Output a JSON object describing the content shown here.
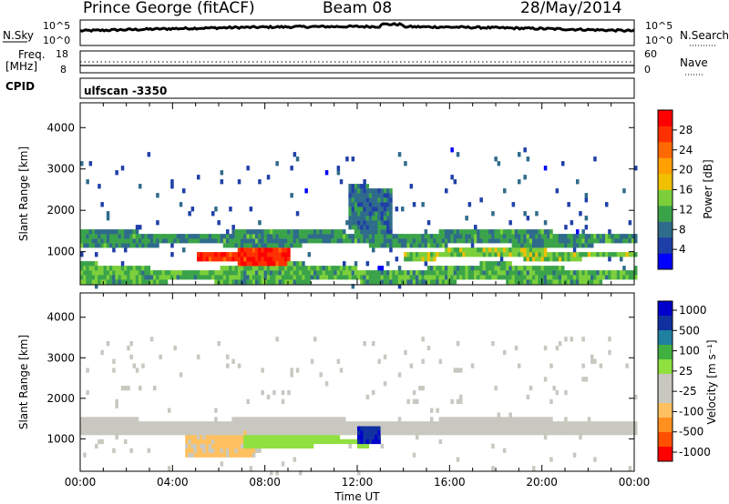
{
  "header": {
    "station": "Prince George (fitACF)",
    "beam": "Beam 08",
    "date": "28/May/2014"
  },
  "strip_labels": {
    "nsky": "N.Sky",
    "nsearch": "N.Search",
    "freq": "Freq.",
    "freq_unit": "[MHz]",
    "nave": "Nave",
    "cpid": "CPID",
    "cpid_value": "ulfscan -3350",
    "nsky_ticks": [
      "10^5",
      "10^0"
    ],
    "nsearch_ticks": [
      "10^5",
      "10^0"
    ],
    "freq_ticks": [
      "18",
      "8"
    ],
    "nave_ticks": [
      "60",
      "0"
    ]
  },
  "colors": {
    "power_scale": [
      "#0000ff",
      "#1f3fa8",
      "#2f6b8a",
      "#3aa34a",
      "#7ccf3a",
      "#f0c000",
      "#ffa000",
      "#ff6a00",
      "#ff3000",
      "#ff0000"
    ],
    "velocity_scale": [
      "#ff0000",
      "#ff5000",
      "#ff9020",
      "#ffc060",
      "#c8c8c0",
      "#c8c8c0",
      "#90e040",
      "#40b040",
      "#2080a0",
      "#1030a0",
      "#0000cc"
    ],
    "ground_scatter": "#c8c8c0"
  },
  "chart_data": [
    {
      "type": "heatmap",
      "name": "power",
      "title": "",
      "xlabel": "",
      "ylabel": "Slant Range [km]",
      "xlim": [
        0,
        24
      ],
      "ylim": [
        200,
        4600
      ],
      "x_ticks": [
        "00:00",
        "04:00",
        "08:00",
        "12:00",
        "16:00",
        "20:00",
        "00:00"
      ],
      "y_ticks": [
        1000,
        2000,
        3000,
        4000
      ],
      "colorbar": {
        "label": "Power [dB]",
        "ticks": [
          4,
          8,
          12,
          16,
          20,
          24,
          28
        ],
        "range": [
          0,
          32
        ]
      },
      "features": [
        {
          "band": "main echo band",
          "t": [
            0,
            24
          ],
          "range_km": [
            1200,
            1550
          ],
          "level_db": 10
        },
        {
          "band": "strong echo patch",
          "t": [
            5,
            9
          ],
          "range_km": [
            800,
            1100
          ],
          "level_db": 28
        },
        {
          "band": "near-range scatter",
          "t": [
            0,
            24
          ],
          "range_km": [
            300,
            700
          ],
          "level_db": 12
        },
        {
          "band": "lower layer",
          "t": [
            14,
            24
          ],
          "range_km": [
            900,
            1100
          ],
          "level_db": 14
        },
        {
          "band": "uplift near 12:30",
          "t": [
            11.5,
            13.5
          ],
          "range_km": [
            1500,
            2700
          ],
          "level_db": 8
        }
      ]
    },
    {
      "type": "heatmap",
      "name": "velocity",
      "title": "",
      "xlabel": "Time UT",
      "ylabel": "Slant Range [km]",
      "xlim": [
        0,
        24
      ],
      "ylim": [
        200,
        4600
      ],
      "x_ticks": [
        "00:00",
        "04:00",
        "08:00",
        "12:00",
        "16:00",
        "20:00",
        "00:00"
      ],
      "y_ticks": [
        1000,
        2000,
        3000,
        4000
      ],
      "colorbar": {
        "label": "Velocity [m s⁻¹]",
        "ticks": [
          "1000",
          "500",
          "100",
          "25",
          "-25",
          "-100",
          "-500",
          "-1000"
        ]
      },
      "features": [
        {
          "band": "ground scatter",
          "t": [
            0,
            24
          ],
          "range_km": [
            1150,
            1550
          ],
          "velocity": 0
        },
        {
          "band": "eastward flow patch",
          "t": [
            4.5,
            7.5
          ],
          "range_km": [
            600,
            1200
          ],
          "velocity": -300
        },
        {
          "band": "westward flow patch",
          "t": [
            7,
            12.5
          ],
          "range_km": [
            850,
            1100
          ],
          "velocity": 150
        },
        {
          "band": "high-velocity spike",
          "t": [
            12,
            13
          ],
          "range_km": [
            900,
            1400
          ],
          "velocity": 800
        }
      ]
    }
  ]
}
